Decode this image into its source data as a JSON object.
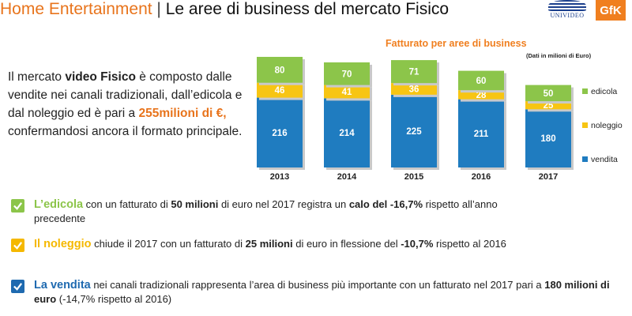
{
  "header": {
    "title_left": "Home Entertainment",
    "separator": " | ",
    "title_right": "Le aree di business del mercato Fisico",
    "logo_univideo": "UNIVIDEO",
    "logo_gfk": "GfK"
  },
  "intro": {
    "t1": "Il mercato ",
    "t2": "video Fisico",
    "t3": " è composto dalle vendite nei canali tradizionali, dall’edicola e dal noleggio ed è pari a ",
    "t4": "255milioni di €,",
    "t5": " confermandosi ancora il formato principale."
  },
  "chart_data": {
    "type": "bar",
    "stacked": true,
    "title": "Fatturato per aree di business",
    "subtitle": "(Dati in milioni di Euro)",
    "categories": [
      "2013",
      "2014",
      "2015",
      "2016",
      "2017"
    ],
    "series": [
      {
        "name": "vendita",
        "values": [
          216,
          214,
          225,
          211,
          180
        ],
        "color": "#1f7cc0"
      },
      {
        "name": "noleggio",
        "values": [
          46,
          41,
          36,
          28,
          25
        ],
        "color": "#f7c513"
      },
      {
        "name": "edicola",
        "values": [
          80,
          70,
          71,
          60,
          50
        ],
        "color": "#8cc54a"
      }
    ],
    "legend_position": "right",
    "grid": false
  },
  "colors": {
    "accent_orange": "#e8741c",
    "edicola_text": "#8cc54a",
    "noleggio_text": "#f5b800",
    "vendita_text": "#1f6ab0",
    "check_green": "#8cc54a",
    "check_yellow": "#f5b800",
    "check_blue": "#1f6ab0"
  },
  "bullets": [
    {
      "icon": "check-icon",
      "k": "L’edicola",
      "a": " con un fatturato di ",
      "b": "50 milioni",
      "c": " di euro nel 2017 registra un ",
      "d": "calo del -16,7%",
      "e": " rispetto all’anno precedente"
    },
    {
      "icon": "check-icon",
      "k": "Il noleggio",
      "a": " chiude il 2017 con un fatturato di ",
      "b": "25 milioni",
      "c": " di euro in flessione del ",
      "d": "-10,7%",
      "e": " rispetto al 2016"
    },
    {
      "icon": "check-icon",
      "k": "La vendita",
      "a": " nei canali tradizionali rappresenta l’area di business più importante con un fatturato nel 2017 pari a ",
      "b": "180 milioni di euro",
      "c": " (-14,7% rispetto al 2016)"
    }
  ]
}
